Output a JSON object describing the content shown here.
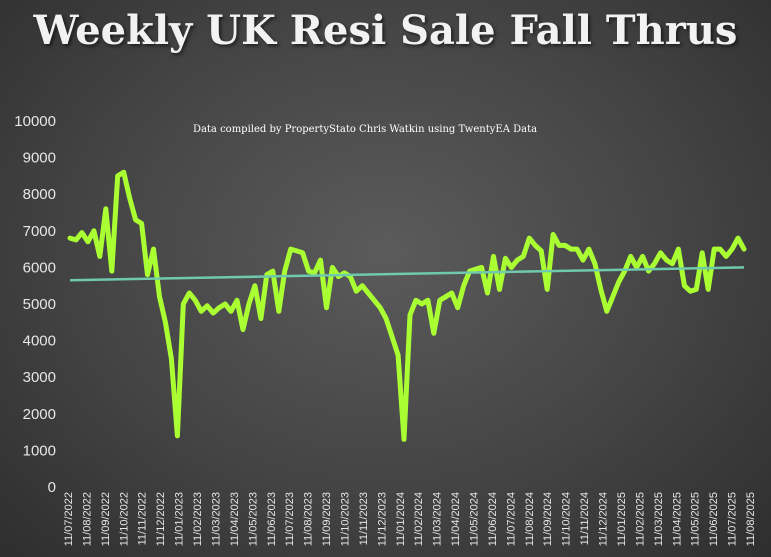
{
  "title": "Weekly UK Resi Sale Fall Thrus",
  "subtitle": "Data compiled by PropertyStato Chris Watkin using TwentyEA Data",
  "colors": {
    "series": "#aaff33",
    "trend": "#6ec9ad",
    "axis_text": "#e6e6e6",
    "background": "#474747"
  },
  "chart_data": {
    "type": "line",
    "title": "Weekly UK Resi Sale Fall Thrus",
    "subtitle": "Data compiled by PropertyStato Chris Watkin using TwentyEA Data",
    "xlabel": "",
    "ylabel": "",
    "ylim": [
      0,
      10000
    ],
    "yticks": [
      0,
      1000,
      2000,
      3000,
      4000,
      5000,
      6000,
      7000,
      8000,
      9000,
      10000
    ],
    "grid": false,
    "legend": "none",
    "x_tick_labels": [
      "11/07/2022",
      "11/08/2022",
      "11/09/2022",
      "11/10/2022",
      "11/11/2022",
      "11/12/2022",
      "11/01/2023",
      "11/02/2023",
      "11/03/2023",
      "11/04/2023",
      "11/05/2023",
      "11/06/2023",
      "11/07/2023",
      "11/08/2023",
      "11/09/2023",
      "11/10/2023",
      "11/11/2023",
      "11/12/2023",
      "11/01/2024",
      "11/02/2024",
      "11/03/2024",
      "11/04/2024",
      "11/05/2024",
      "11/06/2024",
      "11/07/2024",
      "11/08/2024",
      "11/09/2024",
      "11/10/2024",
      "11/11/2024",
      "11/12/2024",
      "11/01/2025",
      "11/02/2025",
      "11/03/2025",
      "11/04/2025",
      "11/05/2025",
      "11/06/2025",
      "11/07/2025",
      "11/08/2025"
    ],
    "series": [
      {
        "values": [
          6800,
          6750,
          6950,
          6700,
          7000,
          6300,
          7600,
          5900,
          8500,
          8600,
          7900,
          7300,
          7200,
          5800,
          6500,
          5200,
          4500,
          3500,
          1400,
          5000,
          5300,
          5100,
          4800,
          4950,
          4750,
          4900,
          5000,
          4800,
          5100,
          4300,
          5000,
          5500,
          4600,
          5800,
          5900,
          4800,
          5900,
          6500,
          6450,
          6400,
          5900,
          5850,
          6200,
          4900,
          6000,
          5750,
          5850,
          5750,
          5350,
          5500,
          5300,
          5100,
          4900,
          4600,
          4100,
          3600,
          1300,
          4700,
          5100,
          5000,
          5100,
          4200,
          5100,
          5200,
          5300,
          4900,
          5500,
          5900,
          5950,
          6000,
          5300,
          6300,
          5400,
          6250,
          6000,
          6200,
          6300,
          6800,
          6600,
          6450,
          5400,
          6900,
          6600,
          6600,
          6500,
          6500,
          6200,
          6500,
          6100,
          5400,
          4800,
          5200,
          5600,
          5900,
          6300,
          6000,
          6300,
          5900,
          6100,
          6400,
          6200,
          6100,
          6500,
          5500,
          5350,
          5400,
          6400,
          5400,
          6500,
          6500,
          6300,
          6500,
          6800,
          6500
        ]
      }
    ],
    "trendline": {
      "start": 5650,
      "end": 6000
    }
  }
}
